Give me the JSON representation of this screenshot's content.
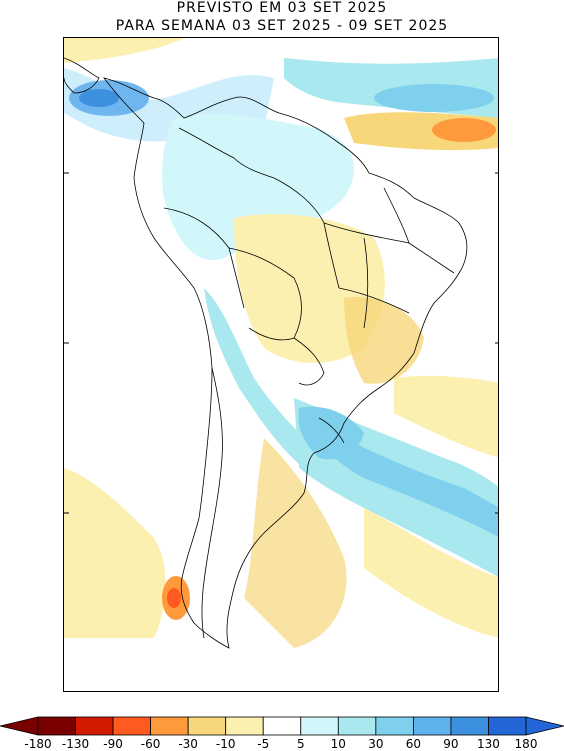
{
  "title": {
    "line1": "PREVISTO EM 03 SET 2025",
    "line2": "PARA SEMANA 03 SET 2025 - 09 SET 2025"
  },
  "map": {
    "region": "South America",
    "field": "weekly anomaly forecast (shaded)"
  },
  "colorbar": {
    "labels": [
      "-180",
      "-130",
      "-90",
      "-60",
      "-30",
      "-10",
      "-5",
      "5",
      "10",
      "30",
      "60",
      "90",
      "130",
      "180"
    ],
    "colors": [
      "#7a0000",
      "#d11a00",
      "#ff5a1f",
      "#ff9a3c",
      "#f7d77a",
      "#fbf0b0",
      "#ffffff",
      "#d2f7fa",
      "#a8e8ee",
      "#7fd0ec",
      "#5fb2ec",
      "#3d8fe0",
      "#2266d8"
    ],
    "extend": "both"
  }
}
